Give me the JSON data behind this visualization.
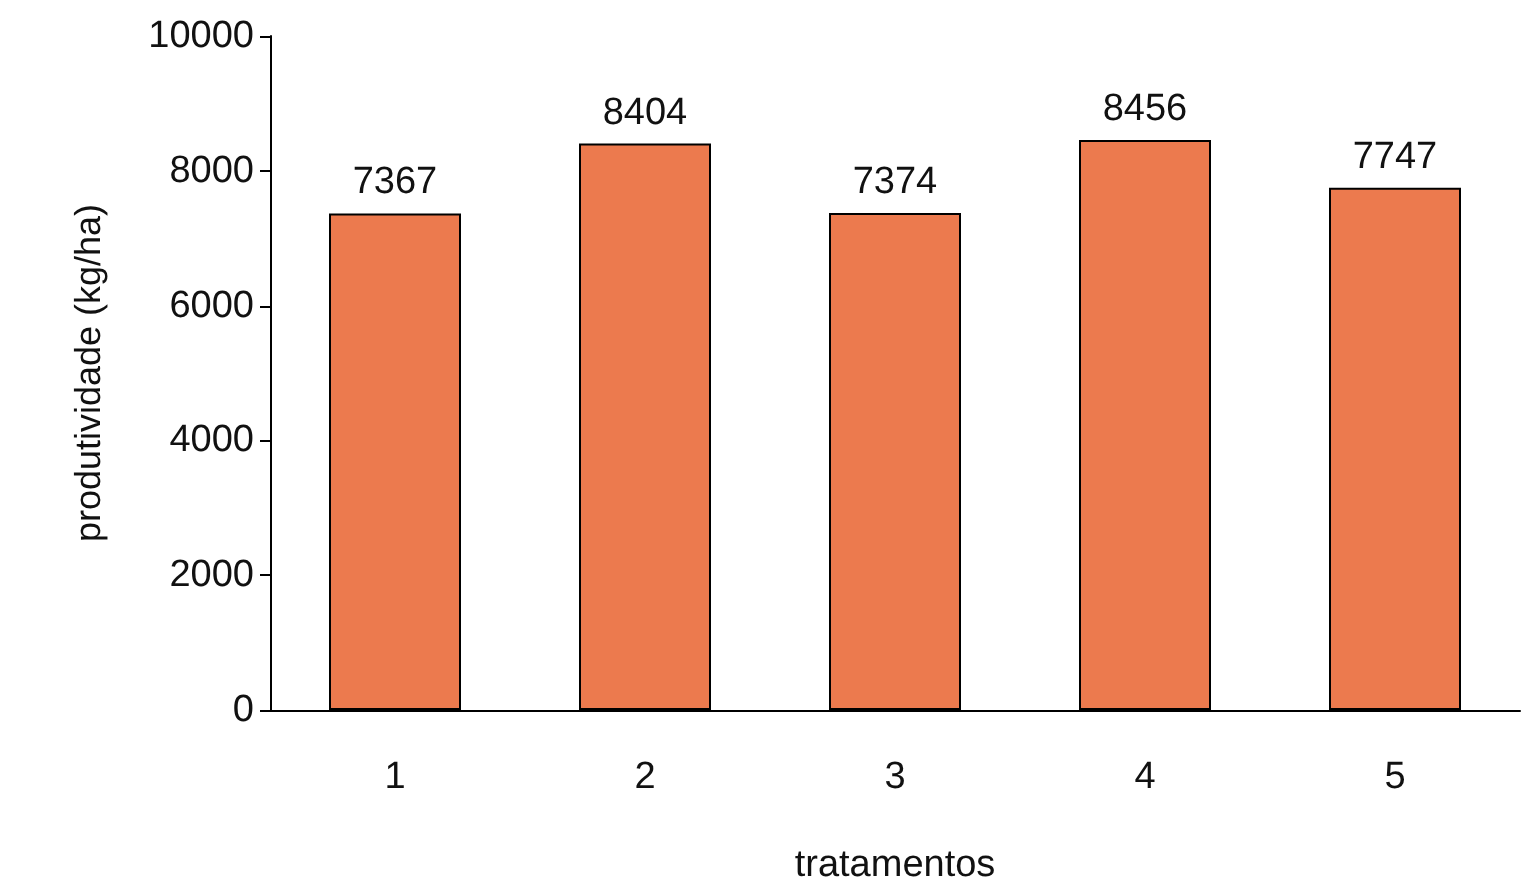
{
  "chart_data": {
    "type": "bar",
    "xlabel": "tratamentos",
    "ylabel": "produtividade (kg/ha)",
    "categories": [
      "1",
      "2",
      "3",
      "4",
      "5"
    ],
    "values": [
      7367,
      8404,
      7374,
      8456,
      7747
    ],
    "color": "#ec7a4e",
    "ylim": [
      0,
      10000
    ],
    "yticks": [
      0,
      2000,
      4000,
      6000,
      8000,
      10000
    ],
    "grid": false,
    "data_labels": true
  }
}
